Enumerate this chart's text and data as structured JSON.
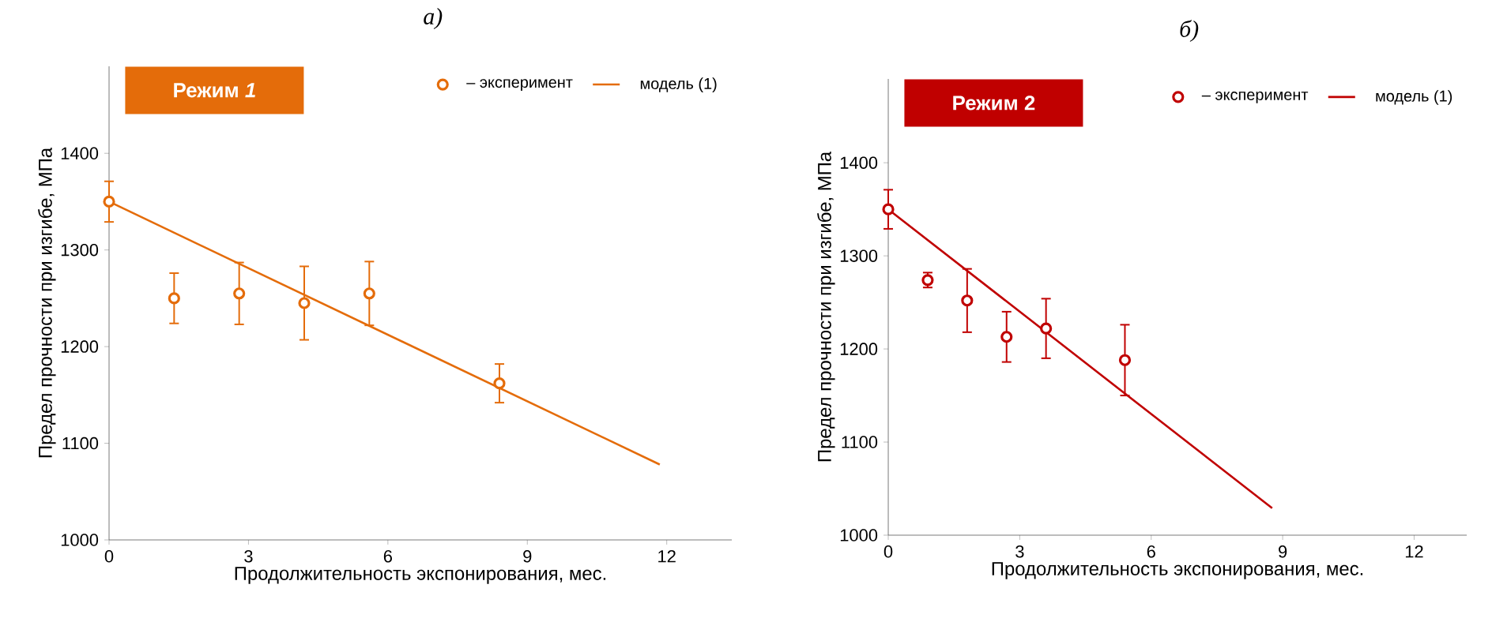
{
  "chart_data": [
    {
      "type": "scatter",
      "title": "*а)*",
      "annotations": [
        "Режим *1*"
      ],
      "xlabel": "Продолжительность экспонирования, мес.",
      "ylabel": "Предел прочности при изгибе, МПа",
      "xlim": [
        0,
        13.4
      ],
      "xticks": [
        0,
        3,
        6,
        9,
        12
      ],
      "ylim": [
        1000,
        1490
      ],
      "yticks": [
        1000,
        1100,
        1200,
        1300,
        1400
      ],
      "legend": "top right",
      "series": [
        {
          "name": "– эксперимент",
          "marker": "circle",
          "color": "#e46c0a",
          "x": [
            0,
            1.4,
            2.8,
            4.2,
            5.6,
            8.4
          ],
          "values": [
            1350,
            1250,
            1255,
            1245,
            1255,
            1162
          ],
          "errors": [
            21,
            26,
            32,
            38,
            33,
            20
          ]
        },
        {
          "name": "модель (1)",
          "type": "line",
          "color": "#e46c0a",
          "x": [
            0,
            11.85
          ],
          "values": [
            1350,
            1078
          ]
        }
      ]
    },
    {
      "type": "scatter",
      "title": "*б)*",
      "annotations": [
        "Режим 2"
      ],
      "xlabel": "Продолжительность экспонирования, мес.",
      "ylabel": "Предел прочности при изгибе, МПа",
      "xlim": [
        0,
        13.2
      ],
      "xticks": [
        0,
        3,
        6,
        9,
        12
      ],
      "ylim": [
        1000,
        1490
      ],
      "yticks": [
        1000,
        1100,
        1200,
        1300,
        1400
      ],
      "legend": "top right",
      "series": [
        {
          "name": "– эксперимент",
          "marker": "circle",
          "color": "#c00000",
          "x": [
            0,
            0.9,
            1.8,
            2.7,
            3.6,
            5.4
          ],
          "values": [
            1350,
            1274,
            1252,
            1213,
            1222,
            1188
          ],
          "errors": [
            21,
            8,
            34,
            27,
            32,
            38
          ]
        },
        {
          "name": "модель (1)",
          "type": "line",
          "color": "#c00000",
          "x": [
            0,
            8.76
          ],
          "values": [
            1350,
            1029
          ]
        }
      ]
    }
  ]
}
